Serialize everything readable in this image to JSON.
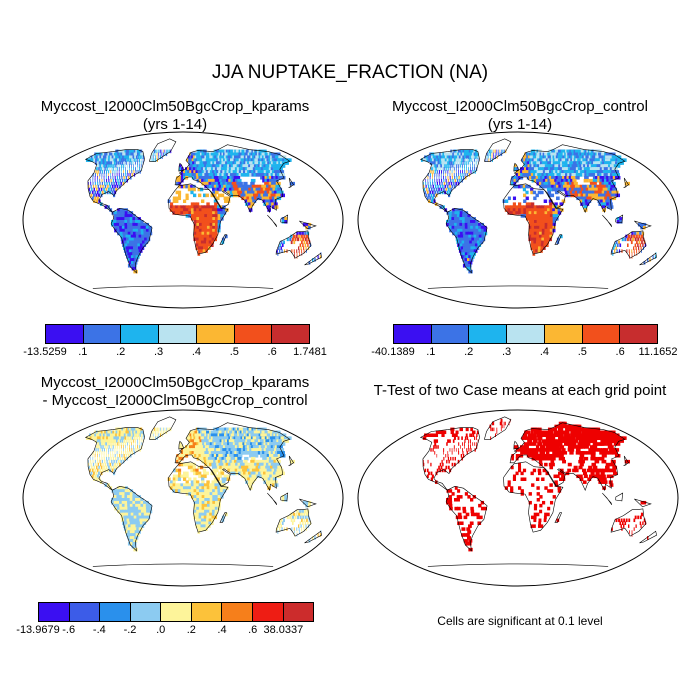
{
  "title": "JJA NUPTAKE_FRACTION (NA)",
  "panels": [
    {
      "id": "kparams",
      "title_line1": "Myccost_I2000Clm50BgcCrop_kparams",
      "title_line2": "(yrs 1-14)",
      "field": "magnitude",
      "colorbar": {
        "colors": [
          "#3b0ff2",
          "#3c73e6",
          "#1eb4ee",
          "#b9e3f0",
          "#fbb733",
          "#f2501c",
          "#c72d2e"
        ],
        "labels": [
          "-13.5259",
          ".1",
          ".2",
          ".3",
          ".4",
          ".5",
          ".6",
          "1.7481"
        ]
      }
    },
    {
      "id": "control",
      "title_line1": "Myccost_I2000Clm50BgcCrop_control",
      "title_line2": "(yrs 1-14)",
      "field": "magnitude",
      "colorbar": {
        "colors": [
          "#3b0ff2",
          "#3c73e6",
          "#1eb4ee",
          "#b9e3f0",
          "#fbb733",
          "#f2501c",
          "#c72d2e"
        ],
        "labels": [
          "-40.1389",
          ".1",
          ".2",
          ".3",
          ".4",
          ".5",
          ".6",
          "11.1652"
        ]
      }
    },
    {
      "id": "difference",
      "title_line1": "Myccost_I2000Clm50BgcCrop_kparams",
      "title_line2": "- Myccost_I2000Clm50BgcCrop_control",
      "field": "difference",
      "colorbar": {
        "colors": [
          "#3b0ff2",
          "#3c5ce8",
          "#2a90ec",
          "#8ccbf1",
          "#fdf49a",
          "#fcc23a",
          "#f67f1b",
          "#ee1d14",
          "#cc2c2c"
        ],
        "labels": [
          "-13.9679",
          "-.6",
          "-.4",
          "-.2",
          ".0",
          ".2",
          ".4",
          ".6",
          "38.0337"
        ]
      }
    },
    {
      "id": "ttest",
      "title_line1": "T-Test of two Case means at each grid point",
      "title_line2": "",
      "field": "significance",
      "sig_color": "#ee0000",
      "note": "Cells are significant at 0.1 level"
    }
  ]
}
